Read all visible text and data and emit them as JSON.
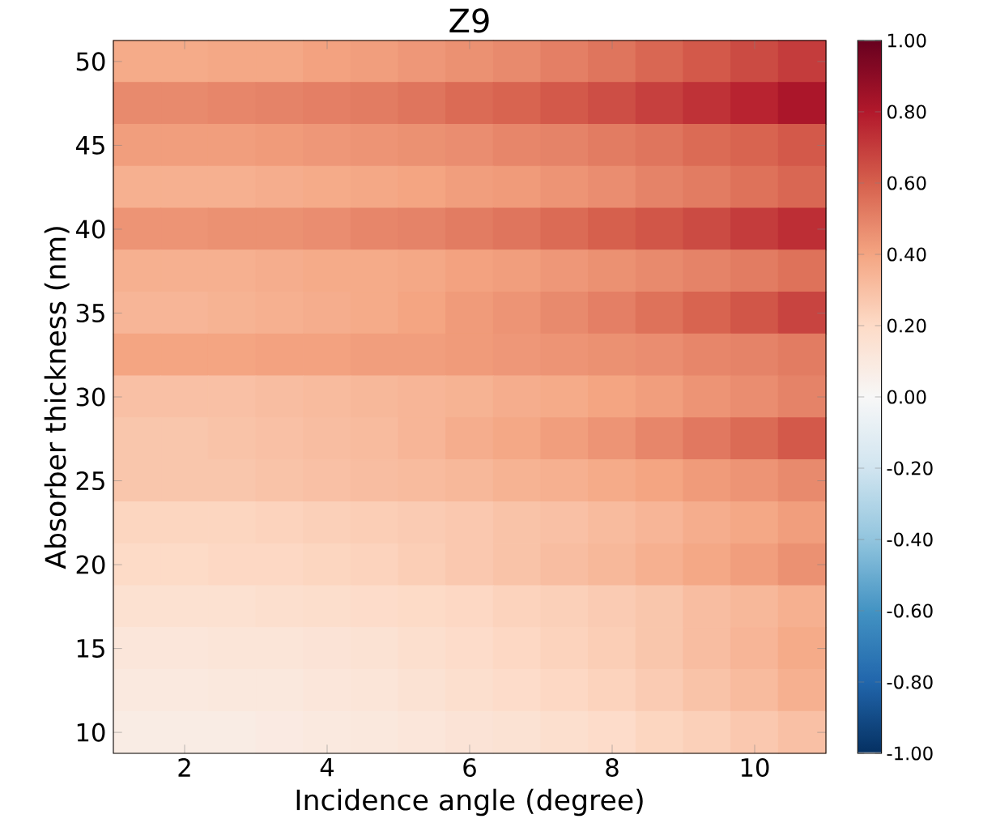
{
  "chart_data": {
    "type": "heatmap",
    "title": "Z9",
    "xlabel": "Incidence angle (degree)",
    "ylabel": "Absorber thickness (nm)",
    "categories": [
      null,
      "2",
      null,
      null,
      "4",
      null,
      null,
      "6",
      null,
      null,
      "8",
      null,
      null,
      "10",
      null
    ],
    "y_categories": [
      "50",
      null,
      "45",
      null,
      "40",
      null,
      "35",
      null,
      "30",
      null,
      "25",
      null,
      "20",
      null,
      "15",
      null,
      "10"
    ],
    "clim": [
      -1,
      1
    ],
    "cticks": [
      {
        "value": -1,
        "label": "-1.00"
      },
      {
        "value": -0.8,
        "label": "-0.80"
      },
      {
        "value": -0.6,
        "label": "-0.60"
      },
      {
        "value": -0.4,
        "label": "-0.40"
      },
      {
        "value": -0.2,
        "label": "-0.20"
      },
      {
        "value": 0,
        "label": "0.00"
      },
      {
        "value": 0.2,
        "label": "0.20"
      },
      {
        "value": 0.4,
        "label": "0.40"
      },
      {
        "value": 0.6,
        "label": "0.60"
      },
      {
        "value": 0.8,
        "label": "0.80"
      },
      {
        "value": 1,
        "label": "1.00"
      }
    ],
    "cells": [
      [
        0.38,
        0.38,
        0.39,
        0.39,
        0.41,
        0.42,
        0.44,
        0.46,
        0.48,
        0.51,
        0.54,
        0.58,
        0.62,
        0.66,
        0.7
      ],
      [
        0.48,
        0.48,
        0.49,
        0.5,
        0.51,
        0.52,
        0.54,
        0.57,
        0.59,
        0.62,
        0.65,
        0.69,
        0.73,
        0.77,
        0.82
      ],
      [
        0.42,
        0.42,
        0.42,
        0.43,
        0.44,
        0.45,
        0.46,
        0.47,
        0.49,
        0.5,
        0.52,
        0.54,
        0.57,
        0.59,
        0.62
      ],
      [
        0.36,
        0.36,
        0.36,
        0.37,
        0.38,
        0.39,
        0.4,
        0.42,
        0.43,
        0.45,
        0.47,
        0.5,
        0.52,
        0.55,
        0.58
      ],
      [
        0.45,
        0.45,
        0.46,
        0.46,
        0.47,
        0.49,
        0.5,
        0.52,
        0.54,
        0.57,
        0.6,
        0.63,
        0.66,
        0.7,
        0.74
      ],
      [
        0.36,
        0.36,
        0.36,
        0.37,
        0.38,
        0.38,
        0.39,
        0.41,
        0.42,
        0.44,
        0.46,
        0.48,
        0.5,
        0.52,
        0.55
      ],
      [
        0.34,
        0.34,
        0.35,
        0.36,
        0.37,
        0.38,
        0.4,
        0.43,
        0.45,
        0.48,
        0.51,
        0.55,
        0.59,
        0.63,
        0.68
      ],
      [
        0.4,
        0.4,
        0.4,
        0.41,
        0.41,
        0.42,
        0.42,
        0.43,
        0.44,
        0.45,
        0.46,
        0.47,
        0.49,
        0.5,
        0.52
      ],
      [
        0.3,
        0.3,
        0.3,
        0.31,
        0.32,
        0.33,
        0.34,
        0.35,
        0.37,
        0.38,
        0.4,
        0.42,
        0.45,
        0.47,
        0.5
      ],
      [
        0.28,
        0.28,
        0.29,
        0.3,
        0.31,
        0.32,
        0.34,
        0.37,
        0.39,
        0.42,
        0.45,
        0.49,
        0.53,
        0.57,
        0.62
      ],
      [
        0.28,
        0.28,
        0.28,
        0.29,
        0.3,
        0.31,
        0.32,
        0.33,
        0.35,
        0.36,
        0.38,
        0.4,
        0.43,
        0.45,
        0.48
      ],
      [
        0.22,
        0.22,
        0.22,
        0.23,
        0.24,
        0.25,
        0.26,
        0.27,
        0.29,
        0.3,
        0.32,
        0.34,
        0.37,
        0.39,
        0.42
      ],
      [
        0.2,
        0.2,
        0.21,
        0.21,
        0.22,
        0.23,
        0.25,
        0.27,
        0.29,
        0.31,
        0.33,
        0.36,
        0.39,
        0.42,
        0.46
      ],
      [
        0.16,
        0.16,
        0.16,
        0.17,
        0.18,
        0.19,
        0.2,
        0.21,
        0.23,
        0.24,
        0.26,
        0.28,
        0.31,
        0.33,
        0.36
      ],
      [
        0.12,
        0.12,
        0.13,
        0.13,
        0.14,
        0.15,
        0.17,
        0.19,
        0.21,
        0.23,
        0.25,
        0.28,
        0.31,
        0.34,
        0.38
      ],
      [
        0.1,
        0.1,
        0.11,
        0.11,
        0.12,
        0.13,
        0.15,
        0.17,
        0.19,
        0.21,
        0.23,
        0.26,
        0.29,
        0.32,
        0.36
      ],
      [
        0.08,
        0.08,
        0.08,
        0.09,
        0.1,
        0.11,
        0.12,
        0.14,
        0.15,
        0.17,
        0.19,
        0.22,
        0.24,
        0.27,
        0.3
      ]
    ]
  }
}
